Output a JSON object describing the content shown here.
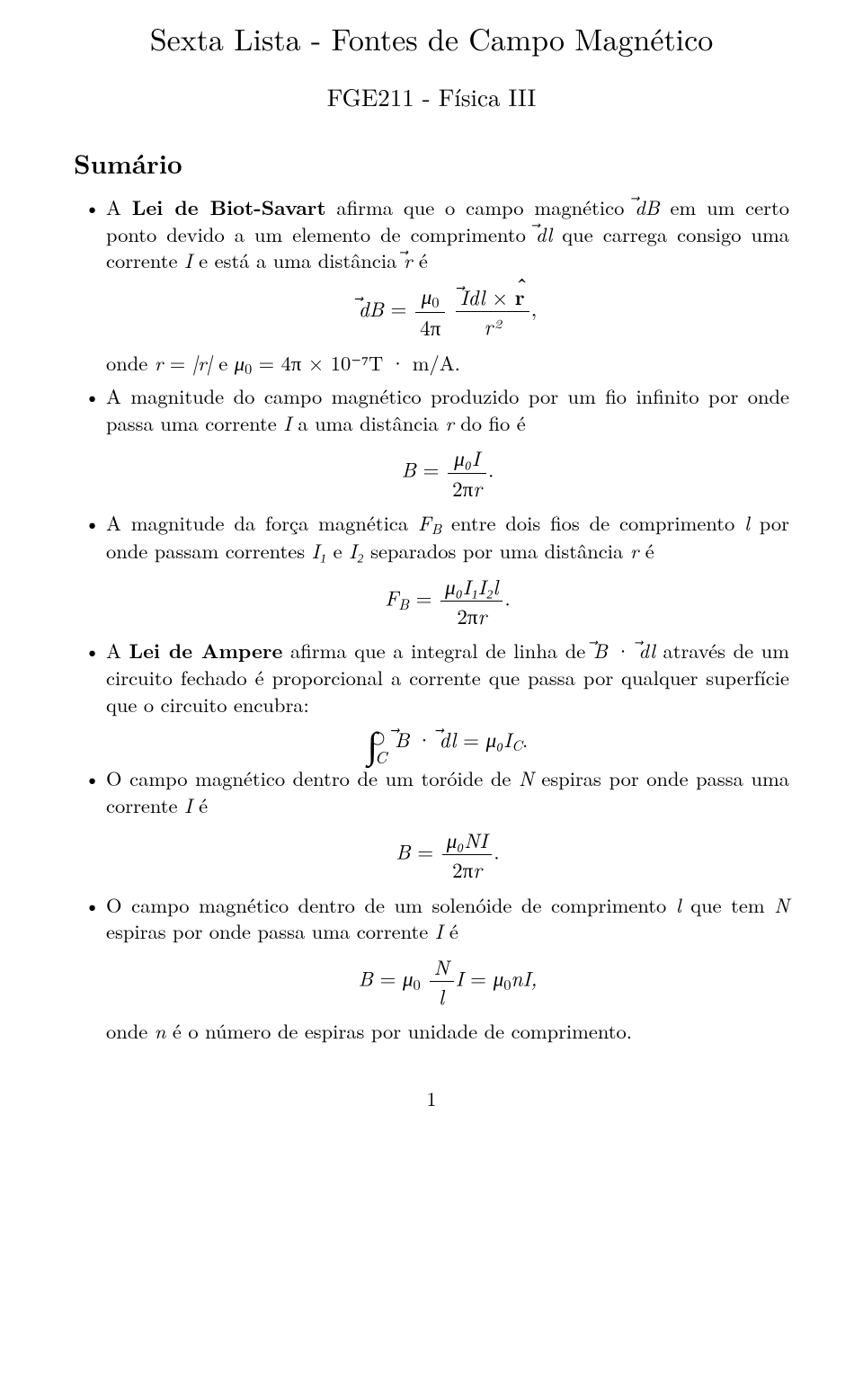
{
  "title": "Sexta Lista - Fontes de Campo Magnético",
  "subtitle": "FGE211 - Física III",
  "section_heading": "Sumário",
  "items": {
    "biot_savart": {
      "p1a": "A ",
      "strong": "Lei de Biot-Savart",
      "p1b": " afirma que o campo magnético ",
      "p1c": " em um certo ponto devido a um elemento de comprimento ",
      "p1d": " que carrega consigo uma corrente ",
      "p1e": " e está a uma distância ",
      "p1f": " é",
      "I": "I",
      "r": "r",
      "onde": "onde ",
      "e": " e ",
      "mu0val": "4π × 10⁻⁷T · m/A."
    },
    "fio_infinito": {
      "txt_a": "A magnitude do campo magnético produzido por um fio infinito por onde passa uma corrente ",
      "txt_b": " a uma distância ",
      "txt_c": " do fio é"
    },
    "forca": {
      "txt_a": "A magnitude da força magnética ",
      "txt_b": " entre dois fios de comprimento ",
      "txt_c": " por onde passam correntes ",
      "txt_d": " e ",
      "txt_e": " separados por uma distância ",
      "txt_f": " é"
    },
    "ampere": {
      "p1a": "A ",
      "strong": "Lei de Ampere",
      "p1b": " afirma que a integral de linha de ",
      "p1c": " através de um circuito fechado é proporcional a corrente que passa por qualquer superfície que o circuito encubra:"
    },
    "toroide": {
      "txt_a": "O campo magnético dentro de um toróide de ",
      "txt_b": " espiras por onde passa uma corrente ",
      "txt_c": " é"
    },
    "solenoide": {
      "txt_a": "O campo magnético dentro de um solenóide de comprimento ",
      "txt_b": " que tem ",
      "txt_c": " espiras por onde passa uma corrente ",
      "txt_d": " é",
      "note": "onde ",
      "note2": " é o número de espiras por unidade de comprimento."
    }
  },
  "sym": {
    "dB": "dB",
    "dl": "dl",
    "mu0": "μ",
    "zero": "0",
    "fourpi": "4π",
    "Idl": "Idl",
    "rhat": "r",
    "r2": "r²",
    "comma": ",",
    "eqsign": " = ",
    "abs_r": "|r⃗|",
    "B": "B",
    "mu0I": "μ₀I",
    "twopir": "2πr",
    "dot": ".",
    "FB": "F",
    "Bsub": "B",
    "mu0I1I2l": "μ₀I₁I₂l",
    "BdotDl": "B⃗ · dl⃗",
    "mu0IC": "μ₀I",
    "Csub": "C",
    "mu0NI": "μ₀NI",
    "Bmu0": "B = μ",
    "Nl_N": "N",
    "Nl_l": "l",
    "I_eq": "I = μ",
    "nI": "nI,",
    "I": "I",
    "r": "r",
    "l": "l",
    "N": "N",
    "n": "n",
    "I1": "I₁",
    "I2": "I₂"
  },
  "page_number": "1"
}
